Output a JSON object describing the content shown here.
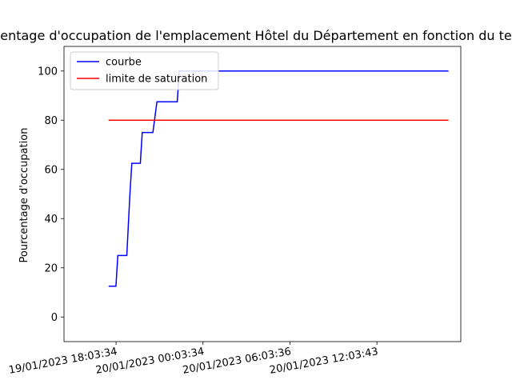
{
  "chart_data": {
    "type": "line",
    "title": "Pourcentage d'occupation de l'emplacement Hôtel du Département en fonction du temps",
    "xlabel": "",
    "ylabel": "Pourcentage d'occupation",
    "xtick_labels": [
      "19/01/2023 18:03:34",
      "20/01/2023 00:03:34",
      "20/01/2023 06:03:36",
      "20/01/2023 12:03:43"
    ],
    "xtick_times": [
      "2023-01-19T18:03:34",
      "2023-01-20T00:03:34",
      "2023-01-20T06:03:36",
      "2023-01-20T12:03:43"
    ],
    "xlim": [
      "2023-01-19T14:28:00",
      "2023-01-20T17:51:00"
    ],
    "ylim": [
      -10,
      110
    ],
    "yticks": [
      0,
      20,
      40,
      60,
      80,
      100
    ],
    "grid": false,
    "legend": "top-left",
    "series": [
      {
        "name": "courbe",
        "color": "#0000ff",
        "x": [
          "2023-01-19T17:33:00",
          "2023-01-19T18:03:00",
          "2023-01-19T18:11:00",
          "2023-01-19T18:48:00",
          "2023-01-19T19:01:00",
          "2023-01-19T19:09:00",
          "2023-01-19T19:44:00",
          "2023-01-19T19:52:00",
          "2023-01-19T20:36:00",
          "2023-01-19T20:53:00",
          "2023-01-19T22:17:00",
          "2023-01-19T22:25:00",
          "2023-01-20T17:00:00"
        ],
        "y": [
          12.5,
          12.5,
          25,
          25,
          50,
          62.5,
          62.5,
          75,
          75,
          87.5,
          87.5,
          100,
          100
        ]
      },
      {
        "name": "limite de saturation",
        "color": "#ff0000",
        "x": [
          "2023-01-19T17:33:00",
          "2023-01-20T17:00:00"
        ],
        "y": [
          80,
          80
        ]
      }
    ]
  }
}
